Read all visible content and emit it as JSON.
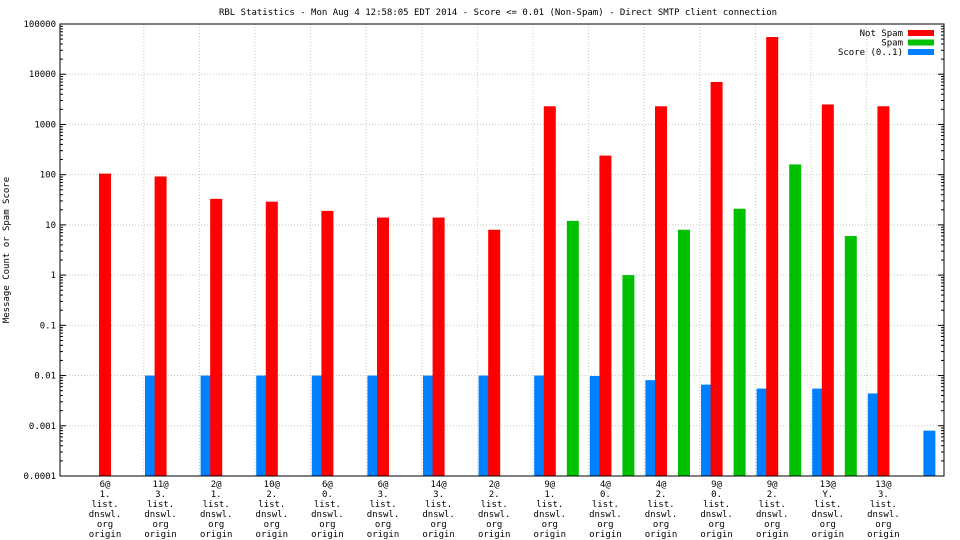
{
  "chart_data": {
    "type": "bar",
    "title": "RBL Statistics - Mon Aug  4 12:58:05 EDT 2014 - Score <= 0.01 (Non-Spam) - Direct SMTP client connection",
    "ylabel": "Message Count or Spam Score",
    "xlabel": "",
    "yscale": "log",
    "ylim": [
      0.0001,
      100000
    ],
    "yticks": [
      "0.0001",
      "0.001",
      "0.01",
      "0.1",
      "1",
      "10",
      "100",
      "1000",
      "10000",
      "100000"
    ],
    "grid": true,
    "legend_position": "top-right",
    "categories": [
      [
        "6@",
        "1.",
        "list.",
        "dnswl.",
        "org",
        "origin"
      ],
      [
        "11@",
        "3.",
        "list.",
        "dnswl.",
        "org",
        "origin"
      ],
      [
        "2@",
        "1.",
        "list.",
        "dnswl.",
        "org",
        "origin"
      ],
      [
        "10@",
        "2.",
        "list.",
        "dnswl.",
        "org",
        "origin"
      ],
      [
        "6@",
        "0.",
        "list.",
        "dnswl.",
        "org",
        "origin"
      ],
      [
        "6@",
        "3.",
        "list.",
        "dnswl.",
        "org",
        "origin"
      ],
      [
        "14@",
        "3.",
        "list.",
        "dnswl.",
        "org",
        "origin"
      ],
      [
        "2@",
        "2.",
        "list.",
        "dnswl.",
        "org",
        "origin"
      ],
      [
        "9@",
        "1.",
        "list.",
        "dnswl.",
        "org",
        "origin"
      ],
      [
        "4@",
        "0.",
        "list.",
        "dnswl.",
        "org",
        "origin"
      ],
      [
        "4@",
        "2.",
        "list.",
        "dnswl.",
        "org",
        "origin"
      ],
      [
        "9@",
        "0.",
        "list.",
        "dnswl.",
        "org",
        "origin"
      ],
      [
        "9@",
        "2.",
        "list.",
        "dnswl.",
        "org",
        "origin"
      ],
      [
        "13@",
        "Y.",
        "list.",
        "dnswl.",
        "org",
        "origin"
      ],
      [
        "13@",
        "3.",
        "list.",
        "dnswl.",
        "org",
        "origin"
      ]
    ],
    "series": [
      {
        "name": "Not Spam",
        "color": "#ff0000",
        "values": [
          105,
          92,
          33,
          29,
          19,
          14,
          14,
          8,
          2300,
          240,
          2300,
          7000,
          55000,
          2500,
          2300
        ]
      },
      {
        "name": "Spam",
        "color": "#00c000",
        "values": [
          null,
          null,
          null,
          null,
          null,
          null,
          null,
          null,
          12,
          1,
          8,
          21,
          160,
          6,
          null
        ]
      },
      {
        "name": "Score (0..1)",
        "color": "#0080ff",
        "values": [
          0.01,
          0.01,
          0.01,
          0.01,
          0.01,
          0.01,
          0.01,
          0.01,
          0.0098,
          0.0081,
          0.0066,
          0.0055,
          0.0055,
          0.0044,
          0.0008
        ]
      }
    ]
  }
}
